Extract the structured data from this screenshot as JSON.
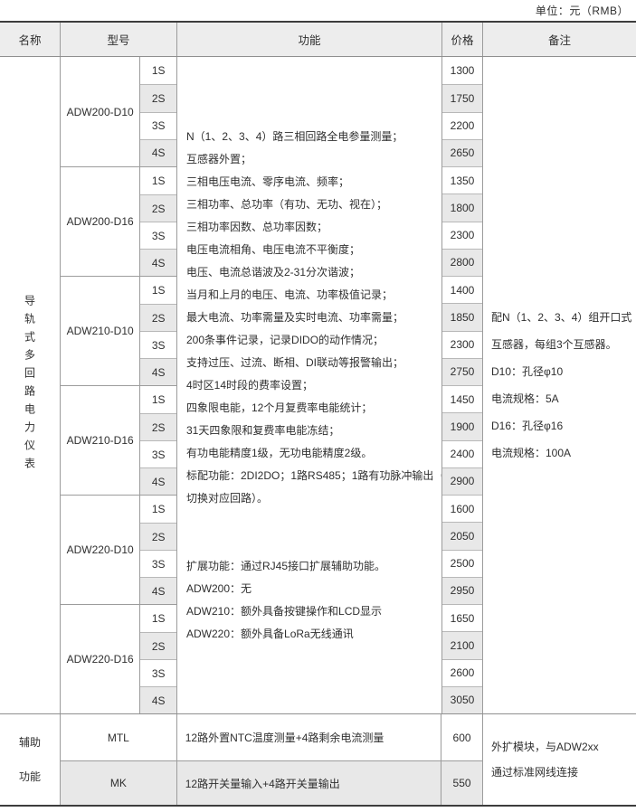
{
  "unit_label": "单位：元（RMB）",
  "header": {
    "name": "名称",
    "model": "型号",
    "function": "功能",
    "price": "价格",
    "note": "备注"
  },
  "main": {
    "category": "导轨式多回路电力仪表",
    "sub_models": [
      "1S",
      "2S",
      "3S",
      "4S"
    ],
    "groups": [
      {
        "model": "ADW200-D10"
      },
      {
        "model": "ADW200-D16"
      },
      {
        "model": "ADW210-D10"
      },
      {
        "model": "ADW210-D16"
      },
      {
        "model": "ADW220-D10"
      },
      {
        "model": "ADW220-D16"
      }
    ],
    "prices": [
      "1300",
      "1750",
      "2200",
      "2650",
      "1350",
      "1800",
      "2300",
      "2800",
      "1400",
      "1850",
      "2300",
      "2750",
      "1450",
      "1900",
      "2400",
      "2900",
      "1600",
      "2050",
      "2500",
      "2950",
      "1650",
      "2100",
      "2600",
      "3050"
    ],
    "function_lines": [
      "N（1、2、3、4）路三相回路全电参量测量；",
      "互感器外置；",
      "三相电压电流、零序电流、频率；",
      "三相功率、总功率（有功、无功、视在）；",
      "三相功率因数、总功率因数；",
      "电压电流相角、电压电流不平衡度；",
      "电压、电流总谐波及2-31分次谐波；",
      "当月和上月的电压、电流、功率极值记录；",
      "最大电流、功率需量及实时电流、功率需量；",
      "200条事件记录，记录DIDO的动作情况；",
      "支持过压、过流、断相、DI联动等报警输出；",
      "4时区14时段的费率设置；",
      "四象限电能，12个月复费率电能统计；",
      "31天四象限和复费率电能冻结；",
      "有功电能精度1级，无功电能精度2级。",
      "标配功能：2DI2DO；1路RS485；1路有功脉冲输出（可",
      "切换对应回路）。",
      "",
      "",
      "扩展功能：通过RJ45接口扩展辅助功能。",
      "ADW200：无",
      "ADW210：额外具备按键操作和LCD显示",
      "ADW220：额外具备LoRa无线通讯"
    ],
    "note_lines": [
      "配N（1、2、3、4）组开口式",
      "互感器，每组3个互感器。",
      "D10：孔径φ10",
      "电流规格：5A",
      "D16：孔径φ16",
      "电流规格：100A"
    ]
  },
  "aux": {
    "category_line1": "辅助",
    "category_line2": "功能",
    "rows": [
      {
        "model": "MTL",
        "function": "12路外置NTC温度测量+4路剩余电流测量",
        "price": "600"
      },
      {
        "model": "MK",
        "function": "12路开关量输入+4路开关量输出",
        "price": "550"
      }
    ],
    "note_line1": "外扩模块，与ADW2xx",
    "note_line2": "通过标准网线连接"
  }
}
